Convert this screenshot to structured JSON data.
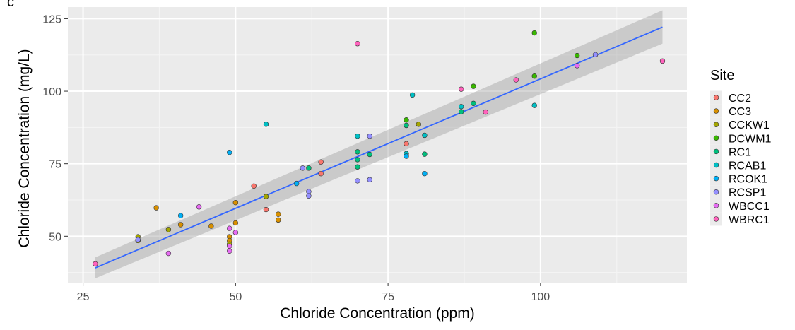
{
  "panel_label": "c",
  "chart_data": {
    "type": "scatter",
    "title": "",
    "xlabel": "Chloride Concentration (ppm)",
    "ylabel": "Chloride Concentration (mg/L)",
    "xlim": [
      22.5,
      124
    ],
    "ylim": [
      34,
      129
    ],
    "x_ticks": [
      25,
      50,
      75,
      100
    ],
    "y_ticks": [
      50,
      75,
      100,
      125
    ],
    "x_tick_labels": [
      "25",
      "50",
      "75",
      "100"
    ],
    "y_tick_labels": [
      "50",
      "75",
      "100",
      "125"
    ],
    "grid": true,
    "legend": {
      "title": "Site",
      "placement": "right",
      "entries": [
        {
          "name": "CC2",
          "color": "#F8766D"
        },
        {
          "name": "CC3",
          "color": "#D89000"
        },
        {
          "name": "CCKW1",
          "color": "#A3A500"
        },
        {
          "name": "DCWM1",
          "color": "#39B600"
        },
        {
          "name": "RC1",
          "color": "#00BF7D"
        },
        {
          "name": "RCAB1",
          "color": "#00BFC4"
        },
        {
          "name": "RCOK1",
          "color": "#00B0F6"
        },
        {
          "name": "RCSP1",
          "color": "#9590FF"
        },
        {
          "name": "WBCC1",
          "color": "#E76BF3"
        },
        {
          "name": "WBRC1",
          "color": "#FF62BC"
        }
      ]
    },
    "series": [
      {
        "name": "CC2",
        "points": [
          [
            53,
            67.3
          ],
          [
            55,
            59.2
          ],
          [
            64,
            75.6
          ],
          [
            64,
            71.6
          ],
          [
            78,
            81.9
          ]
        ]
      },
      {
        "name": "CC3",
        "points": [
          [
            37,
            59.8
          ],
          [
            41,
            54
          ],
          [
            46,
            53.5
          ],
          [
            49,
            49.8
          ],
          [
            49,
            48.5
          ],
          [
            50,
            54.6
          ],
          [
            50,
            61.6
          ],
          [
            57,
            57.6
          ],
          [
            57,
            55.6
          ]
        ]
      },
      {
        "name": "CCKW1",
        "points": [
          [
            34,
            49.8
          ],
          [
            34,
            48.5
          ],
          [
            39,
            52.3
          ],
          [
            49,
            47.3
          ],
          [
            55,
            63.7
          ],
          [
            80,
            88.6
          ]
        ]
      },
      {
        "name": "DCWM1",
        "points": [
          [
            78,
            90.1
          ],
          [
            89,
            101.7
          ],
          [
            99,
            105.2
          ],
          [
            99,
            120.1
          ],
          [
            106,
            112.3
          ]
        ]
      },
      {
        "name": "RC1",
        "points": [
          [
            62,
            73.5
          ],
          [
            70,
            79.1
          ],
          [
            70,
            76.4
          ],
          [
            70,
            73.9
          ],
          [
            72,
            78.2
          ],
          [
            78,
            88.2
          ],
          [
            81,
            78.3
          ],
          [
            87,
            92.9
          ],
          [
            89,
            95.8
          ]
        ]
      },
      {
        "name": "RCAB1",
        "points": [
          [
            55,
            88.6
          ],
          [
            70,
            84.5
          ],
          [
            78,
            78.5
          ],
          [
            79,
            98.7
          ],
          [
            81,
            84.8
          ],
          [
            87,
            94.7
          ],
          [
            99,
            95.1
          ]
        ]
      },
      {
        "name": "RCOK1",
        "points": [
          [
            41,
            57.1
          ],
          [
            49,
            78.9
          ],
          [
            60,
            68.2
          ],
          [
            78,
            77.6
          ],
          [
            81,
            71.6
          ]
        ]
      },
      {
        "name": "RCSP1",
        "points": [
          [
            34,
            48.8
          ],
          [
            61,
            73.5
          ],
          [
            62,
            65.4
          ],
          [
            62,
            63.9
          ],
          [
            70,
            69.1
          ],
          [
            72,
            84.5
          ],
          [
            72,
            69.5
          ],
          [
            109,
            112.6
          ]
        ]
      },
      {
        "name": "WBCC1",
        "points": [
          [
            39,
            44.1
          ],
          [
            44,
            60.1
          ],
          [
            49,
            52.7
          ],
          [
            49,
            46.6
          ],
          [
            49,
            44.9
          ],
          [
            50,
            51.3
          ],
          [
            106,
            108.8
          ]
        ]
      },
      {
        "name": "WBRC1",
        "points": [
          [
            27,
            40.5
          ],
          [
            70,
            116.4
          ],
          [
            87,
            100.7
          ],
          [
            91,
            92.8
          ],
          [
            96,
            103.9
          ],
          [
            120,
            110.4
          ]
        ]
      }
    ],
    "fit_line": {
      "method": "linear",
      "x": [
        27,
        120
      ],
      "y": [
        39.1,
        122.1
      ],
      "ci_lower": [
        35.5,
        116.4
      ],
      "ci_upper": [
        42.7,
        127.9
      ]
    }
  }
}
